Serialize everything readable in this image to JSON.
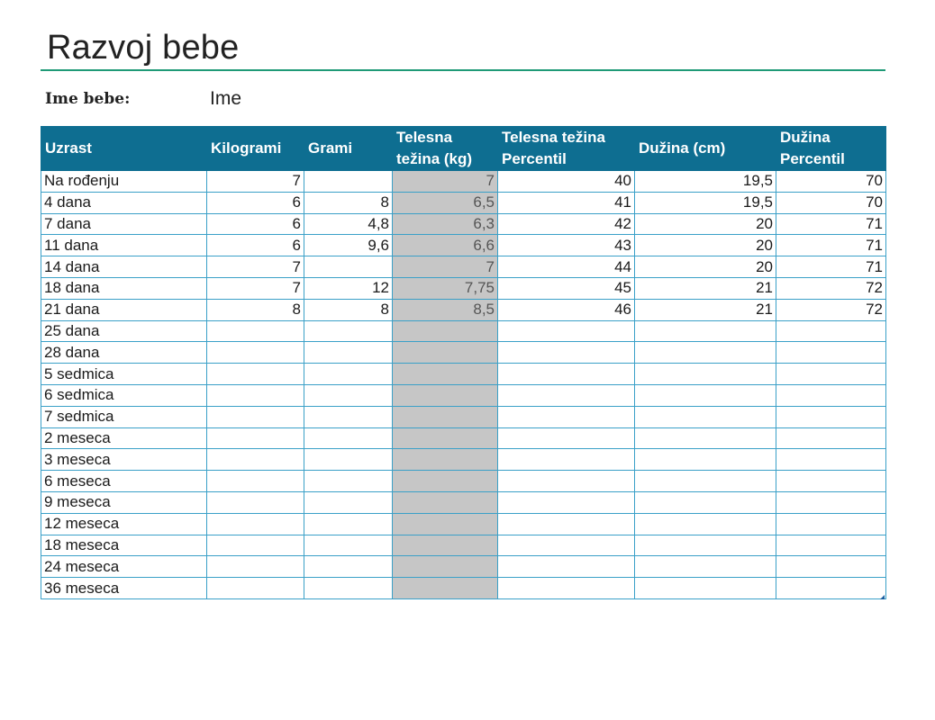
{
  "title": "Razvoj bebe",
  "baby": {
    "label": "Ime bebe:",
    "value": "Ime"
  },
  "columns": [
    "Uzrast",
    "Kilogrami",
    "Grami",
    "Telesna težina (kg)",
    "Telesna težina Percentil",
    "Dužina (cm)",
    "Dužina Percentil"
  ],
  "rows": [
    {
      "age": "Na rođenju",
      "kg": "7",
      "g": "",
      "weight": "7",
      "wp": "40",
      "len": "19,5",
      "lp": "70"
    },
    {
      "age": "4 dana",
      "kg": "6",
      "g": "8",
      "weight": "6,5",
      "wp": "41",
      "len": "19,5",
      "lp": "70"
    },
    {
      "age": "7 dana",
      "kg": "6",
      "g": "4,8",
      "weight": "6,3",
      "wp": "42",
      "len": "20",
      "lp": "71"
    },
    {
      "age": "11 dana",
      "kg": "6",
      "g": "9,6",
      "weight": "6,6",
      "wp": "43",
      "len": "20",
      "lp": "71"
    },
    {
      "age": "14 dana",
      "kg": "7",
      "g": "",
      "weight": "7",
      "wp": "44",
      "len": "20",
      "lp": "71"
    },
    {
      "age": "18 dana",
      "kg": "7",
      "g": "12",
      "weight": "7,75",
      "wp": "45",
      "len": "21",
      "lp": "72"
    },
    {
      "age": "21 dana",
      "kg": "8",
      "g": "8",
      "weight": "8,5",
      "wp": "46",
      "len": "21",
      "lp": "72"
    },
    {
      "age": "25 dana",
      "kg": "",
      "g": "",
      "weight": "",
      "wp": "",
      "len": "",
      "lp": ""
    },
    {
      "age": "28 dana",
      "kg": "",
      "g": "",
      "weight": "",
      "wp": "",
      "len": "",
      "lp": ""
    },
    {
      "age": "5 sedmica",
      "kg": "",
      "g": "",
      "weight": "",
      "wp": "",
      "len": "",
      "lp": ""
    },
    {
      "age": "6 sedmica",
      "kg": "",
      "g": "",
      "weight": "",
      "wp": "",
      "len": "",
      "lp": ""
    },
    {
      "age": "7 sedmica",
      "kg": "",
      "g": "",
      "weight": "",
      "wp": "",
      "len": "",
      "lp": ""
    },
    {
      "age": "2 meseca",
      "kg": "",
      "g": "",
      "weight": "",
      "wp": "",
      "len": "",
      "lp": ""
    },
    {
      "age": "3 meseca",
      "kg": "",
      "g": "",
      "weight": "",
      "wp": "",
      "len": "",
      "lp": ""
    },
    {
      "age": "6 meseca",
      "kg": "",
      "g": "",
      "weight": "",
      "wp": "",
      "len": "",
      "lp": ""
    },
    {
      "age": "9 meseca",
      "kg": "",
      "g": "",
      "weight": "",
      "wp": "",
      "len": "",
      "lp": ""
    },
    {
      "age": "12 meseca",
      "kg": "",
      "g": "",
      "weight": "",
      "wp": "",
      "len": "",
      "lp": ""
    },
    {
      "age": "18 meseca",
      "kg": "",
      "g": "",
      "weight": "",
      "wp": "",
      "len": "",
      "lp": ""
    },
    {
      "age": "24 meseca",
      "kg": "",
      "g": "",
      "weight": "",
      "wp": "",
      "len": "",
      "lp": ""
    },
    {
      "age": "36 meseca",
      "kg": "",
      "g": "",
      "weight": "",
      "wp": "",
      "len": "",
      "lp": ""
    }
  ],
  "colors": {
    "header_bg": "#0e6e91",
    "rule": "#1f9a77",
    "grid": "#3aa0c8",
    "calc_bg": "#c6c6c6"
  }
}
